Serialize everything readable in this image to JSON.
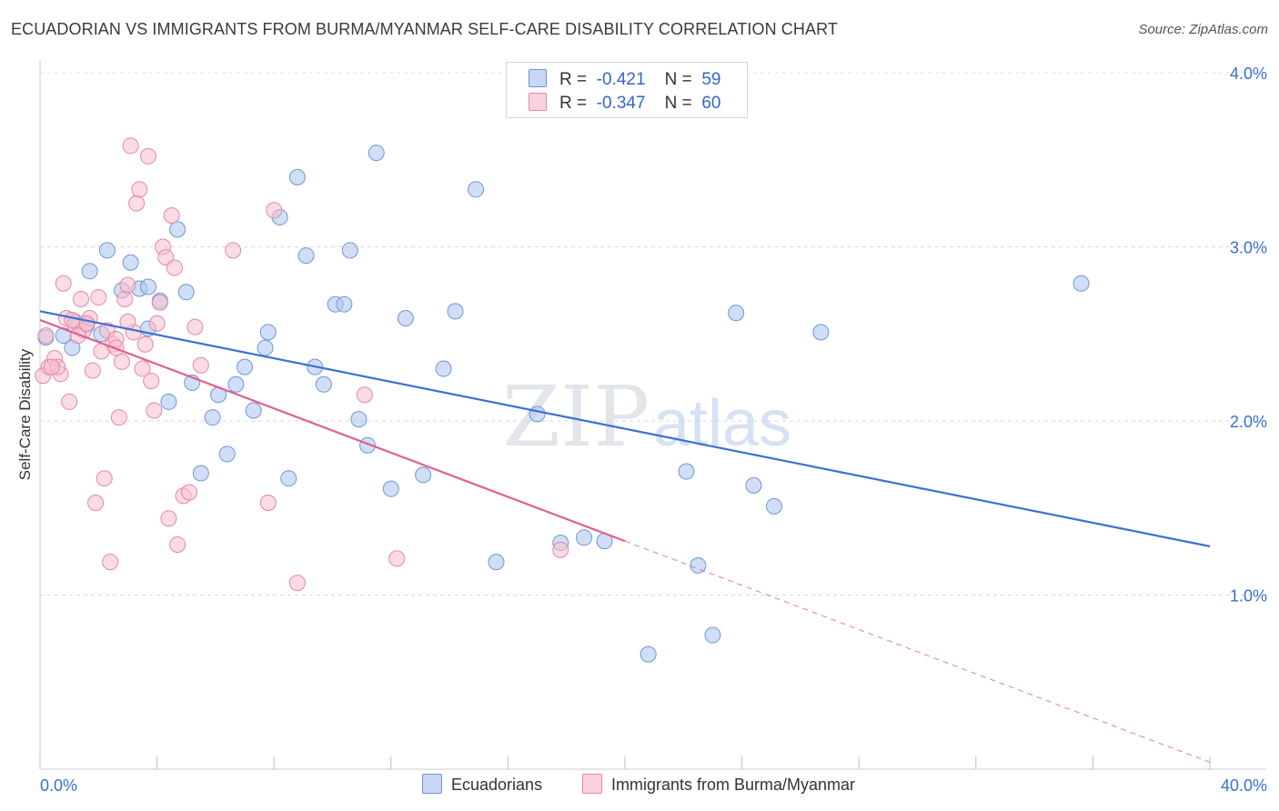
{
  "title": "ECUADORIAN VS IMMIGRANTS FROM BURMA/MYANMAR SELF-CARE DISABILITY CORRELATION CHART",
  "source": "Source: ZipAtlas.com",
  "watermark": {
    "zip": "ZIP",
    "atlas": "atlas"
  },
  "legend": {
    "r_label": "R =",
    "n_label": "N =",
    "rows": [
      {
        "r": "-0.421",
        "n": "59",
        "color": "#a9c4ef",
        "stroke": "#6f95d8"
      },
      {
        "r": "-0.347",
        "n": "60",
        "color": "#f7bfd0",
        "stroke": "#e587a6"
      }
    ]
  },
  "bottom_legend": [
    {
      "label": "Ecuadorians",
      "color": "#c5d7f5",
      "stroke": "#6f95d8"
    },
    {
      "label": "Immigrants from Burma/Myanmar",
      "color": "#f9d2de",
      "stroke": "#e587a6"
    }
  ],
  "chart_data": {
    "type": "scatter",
    "title": "ECUADORIAN VS IMMIGRANTS FROM BURMA/MYANMAR SELF-CARE DISABILITY CORRELATION CHART",
    "xlabel": "",
    "ylabel": "Self-Care Disability",
    "xlim": [
      0,
      40
    ],
    "ylim": [
      0,
      4
    ],
    "x_tick_labels": [
      "0.0%",
      "40.0%"
    ],
    "y_ticks": [
      1,
      2,
      3,
      4
    ],
    "y_tick_labels": [
      "1.0%",
      "2.0%",
      "3.0%",
      "4.0%"
    ],
    "grid": true,
    "legend_position": "top-center",
    "series": [
      {
        "name": "Ecuadorians",
        "color": "#6f95d8",
        "fill": "#a9c4ef",
        "trend": {
          "x0": 0,
          "y0": 2.63,
          "x1": 40,
          "y1": 1.28,
          "color": "#3a72d0"
        },
        "points": [
          [
            0.2,
            2.48
          ],
          [
            0.8,
            2.49
          ],
          [
            1.1,
            2.42
          ],
          [
            1.6,
            2.55
          ],
          [
            1.7,
            2.86
          ],
          [
            2.1,
            2.5
          ],
          [
            2.3,
            2.98
          ],
          [
            2.8,
            2.75
          ],
          [
            3.1,
            2.91
          ],
          [
            3.4,
            2.76
          ],
          [
            3.7,
            2.53
          ],
          [
            4.1,
            2.69
          ],
          [
            4.4,
            2.11
          ],
          [
            4.7,
            3.1
          ],
          [
            5.0,
            2.74
          ],
          [
            5.2,
            2.22
          ],
          [
            5.5,
            1.7
          ],
          [
            5.9,
            2.02
          ],
          [
            6.1,
            2.15
          ],
          [
            6.4,
            1.81
          ],
          [
            6.7,
            2.21
          ],
          [
            7.0,
            2.31
          ],
          [
            7.3,
            2.06
          ],
          [
            7.7,
            2.42
          ],
          [
            7.8,
            2.51
          ],
          [
            8.2,
            3.17
          ],
          [
            8.5,
            1.67
          ],
          [
            8.8,
            3.4
          ],
          [
            9.1,
            2.95
          ],
          [
            9.4,
            2.31
          ],
          [
            9.7,
            2.21
          ],
          [
            10.1,
            2.67
          ],
          [
            10.4,
            2.67
          ],
          [
            10.6,
            2.98
          ],
          [
            10.9,
            2.01
          ],
          [
            11.2,
            1.86
          ],
          [
            11.5,
            3.54
          ],
          [
            12.0,
            1.61
          ],
          [
            12.5,
            2.59
          ],
          [
            13.1,
            1.69
          ],
          [
            13.8,
            2.3
          ],
          [
            14.2,
            2.63
          ],
          [
            14.9,
            3.33
          ],
          [
            15.6,
            1.19
          ],
          [
            17.0,
            2.04
          ],
          [
            17.8,
            1.3
          ],
          [
            18.6,
            1.33
          ],
          [
            19.3,
            1.31
          ],
          [
            20.8,
            0.66
          ],
          [
            22.1,
            1.71
          ],
          [
            22.5,
            1.17
          ],
          [
            23.0,
            0.77
          ],
          [
            23.8,
            2.62
          ],
          [
            24.4,
            1.63
          ],
          [
            25.1,
            1.51
          ],
          [
            26.7,
            2.51
          ],
          [
            35.6,
            2.79
          ],
          [
            1.2,
            2.57
          ],
          [
            3.7,
            2.77
          ]
        ]
      },
      {
        "name": "Immigrants from Burma/Myanmar",
        "color": "#e587a6",
        "fill": "#f7bfd0",
        "trend": {
          "x0": 0,
          "y0": 2.58,
          "x1": 20,
          "y1": 1.31,
          "dash_x1": 40,
          "dash_y1": 0.04,
          "color": "#e0608f"
        },
        "points": [
          [
            0.1,
            2.26
          ],
          [
            0.3,
            2.31
          ],
          [
            0.5,
            2.36
          ],
          [
            0.7,
            2.27
          ],
          [
            0.9,
            2.59
          ],
          [
            1.0,
            2.11
          ],
          [
            1.2,
            2.55
          ],
          [
            1.4,
            2.7
          ],
          [
            1.5,
            2.52
          ],
          [
            1.7,
            2.59
          ],
          [
            1.8,
            2.29
          ],
          [
            1.9,
            1.53
          ],
          [
            2.0,
            2.71
          ],
          [
            2.2,
            1.67
          ],
          [
            2.3,
            2.52
          ],
          [
            2.4,
            1.19
          ],
          [
            2.5,
            2.44
          ],
          [
            2.6,
            2.47
          ],
          [
            2.7,
            2.02
          ],
          [
            2.8,
            2.34
          ],
          [
            2.9,
            2.7
          ],
          [
            3.0,
            2.78
          ],
          [
            3.1,
            3.58
          ],
          [
            3.2,
            2.51
          ],
          [
            3.3,
            3.25
          ],
          [
            3.4,
            3.33
          ],
          [
            3.5,
            2.3
          ],
          [
            3.6,
            2.44
          ],
          [
            3.7,
            3.52
          ],
          [
            3.8,
            2.23
          ],
          [
            3.9,
            2.06
          ],
          [
            4.0,
            2.56
          ],
          [
            4.1,
            2.68
          ],
          [
            4.2,
            3.0
          ],
          [
            4.3,
            2.94
          ],
          [
            4.4,
            1.44
          ],
          [
            4.5,
            3.18
          ],
          [
            4.6,
            2.88
          ],
          [
            4.7,
            1.29
          ],
          [
            4.9,
            1.57
          ],
          [
            5.1,
            1.59
          ],
          [
            5.3,
            2.54
          ],
          [
            5.5,
            2.32
          ],
          [
            6.6,
            2.98
          ],
          [
            7.8,
            1.53
          ],
          [
            8.0,
            3.21
          ],
          [
            8.8,
            1.07
          ],
          [
            11.1,
            2.15
          ],
          [
            12.2,
            1.21
          ],
          [
            17.8,
            1.26
          ],
          [
            0.6,
            2.31
          ],
          [
            0.8,
            2.79
          ],
          [
            1.1,
            2.58
          ],
          [
            1.3,
            2.49
          ],
          [
            1.6,
            2.56
          ],
          [
            2.1,
            2.4
          ],
          [
            2.6,
            2.42
          ],
          [
            3.0,
            2.57
          ],
          [
            0.4,
            2.31
          ],
          [
            0.2,
            2.49
          ]
        ]
      }
    ]
  }
}
